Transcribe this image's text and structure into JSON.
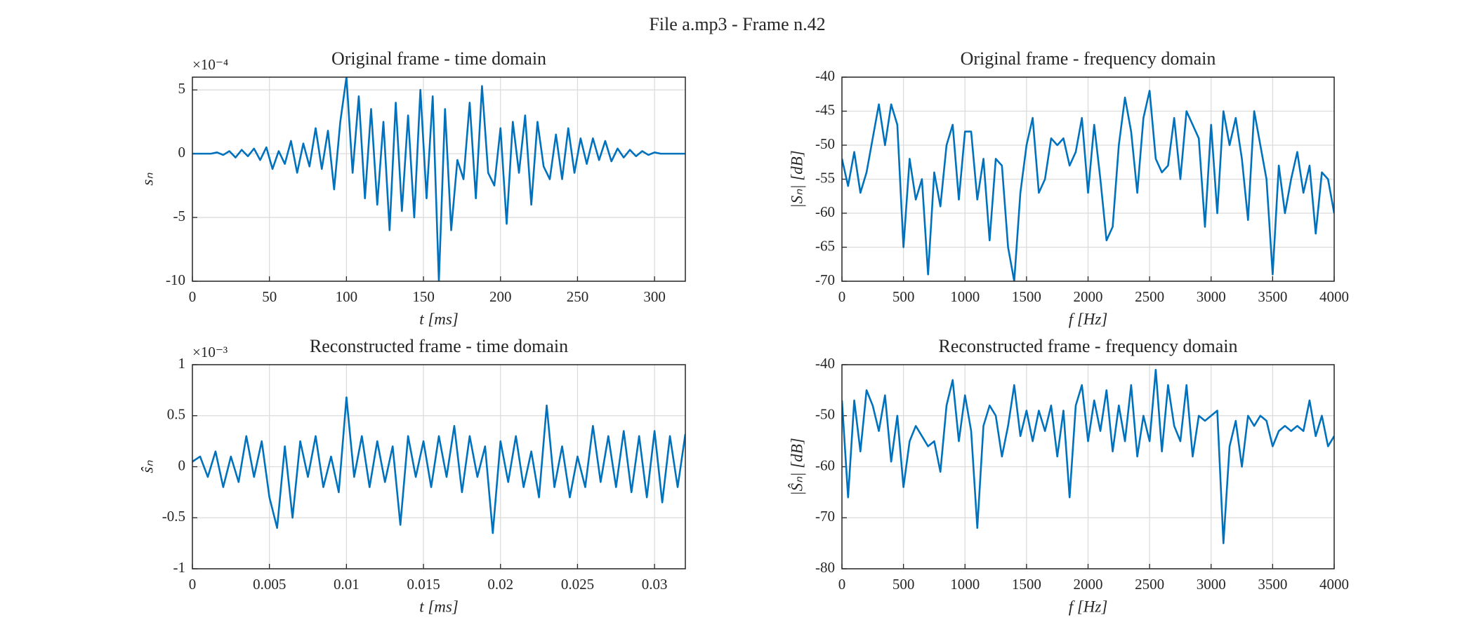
{
  "title": "File a.mp3 - Frame n.42",
  "chart_data": [
    {
      "type": "line",
      "title": "Original frame - time domain",
      "x_label": "t [ms]",
      "y_label": "sₙ",
      "y_exponent": "×10⁻⁴",
      "x": [
        0,
        4,
        8,
        12,
        16,
        20,
        24,
        28,
        32,
        36,
        40,
        44,
        48,
        52,
        56,
        60,
        64,
        68,
        72,
        76,
        80,
        84,
        88,
        92,
        96,
        100,
        104,
        108,
        112,
        116,
        120,
        124,
        128,
        132,
        136,
        140,
        144,
        148,
        152,
        156,
        160,
        164,
        168,
        172,
        176,
        180,
        184,
        188,
        192,
        196,
        200,
        204,
        208,
        212,
        216,
        220,
        224,
        228,
        232,
        236,
        240,
        244,
        248,
        252,
        256,
        260,
        264,
        268,
        272,
        276,
        280,
        284,
        288,
        292,
        296,
        300,
        304,
        308,
        312,
        316,
        320
      ],
      "series": [
        {
          "color": "#0072bd",
          "values": [
            0,
            0,
            0,
            0,
            0.1,
            -0.1,
            0.2,
            -0.3,
            0.3,
            -0.2,
            0.4,
            -0.5,
            0.5,
            -1.2,
            0.2,
            -0.8,
            1.0,
            -1.5,
            0.8,
            -1.0,
            2.0,
            -1.2,
            1.8,
            -2.8,
            2.5,
            6.0,
            -1.5,
            4.5,
            -3.5,
            3.5,
            -4.0,
            2.5,
            -6.0,
            4.0,
            -4.5,
            3.0,
            -5.0,
            5.0,
            -3.5,
            4.5,
            -10,
            3.5,
            -6.0,
            -0.5,
            -2.0,
            4.0,
            -3.5,
            5.3,
            -1.5,
            -2.5,
            2.0,
            -5.5,
            2.5,
            -1.5,
            3.0,
            -4.0,
            2.5,
            -1.0,
            -2.0,
            1.5,
            -2.0,
            2.0,
            -1.5,
            1.2,
            -0.8,
            1.2,
            -0.5,
            1.0,
            -0.6,
            0.4,
            -0.3,
            0.3,
            -0.2,
            0.2,
            -0.1,
            0.1,
            0,
            0,
            0,
            0,
            0
          ]
        }
      ],
      "xlim": [
        0,
        320
      ],
      "xticks": [
        0,
        50,
        100,
        150,
        200,
        250,
        300
      ],
      "ylim": [
        -10,
        6
      ],
      "yticks": [
        -10,
        -5,
        0,
        5
      ],
      "grid": true
    },
    {
      "type": "line",
      "title": "Original frame - frequency domain",
      "x_label": "f [Hz]",
      "y_label": "|Sₙ| [dB]",
      "x": [
        0,
        50,
        100,
        150,
        200,
        250,
        300,
        350,
        400,
        450,
        500,
        550,
        600,
        650,
        700,
        750,
        800,
        850,
        900,
        950,
        1000,
        1050,
        1100,
        1150,
        1200,
        1250,
        1300,
        1350,
        1400,
        1450,
        1500,
        1550,
        1600,
        1650,
        1700,
        1750,
        1800,
        1850,
        1900,
        1950,
        2000,
        2050,
        2100,
        2150,
        2200,
        2250,
        2300,
        2350,
        2400,
        2450,
        2500,
        2550,
        2600,
        2650,
        2700,
        2750,
        2800,
        2850,
        2900,
        2950,
        3000,
        3050,
        3100,
        3150,
        3200,
        3250,
        3300,
        3350,
        3400,
        3450,
        3500,
        3550,
        3600,
        3650,
        3700,
        3750,
        3800,
        3850,
        3900,
        3950,
        4000
      ],
      "series": [
        {
          "color": "#0072bd",
          "values": [
            -52,
            -56,
            -51,
            -57,
            -54,
            -49,
            -44,
            -50,
            -44,
            -47,
            -65,
            -52,
            -58,
            -55,
            -69,
            -54,
            -59,
            -50,
            -47,
            -58,
            -48,
            -48,
            -58,
            -52,
            -64,
            -52,
            -53,
            -65,
            -70,
            -57,
            -50,
            -46,
            -57,
            -55,
            -49,
            -50,
            -49,
            -53,
            -51,
            -46,
            -57,
            -47,
            -55,
            -64,
            -62,
            -50,
            -43,
            -48,
            -57,
            -46,
            -42,
            -52,
            -54,
            -53,
            -46,
            -55,
            -45,
            -47,
            -49,
            -62,
            -47,
            -60,
            -45,
            -50,
            -46,
            -52,
            -61,
            -45,
            -50,
            -55,
            -69,
            -53,
            -60,
            -55,
            -51,
            -57,
            -53,
            -63,
            -54,
            -55,
            -60
          ]
        }
      ],
      "xlim": [
        0,
        4000
      ],
      "xticks": [
        0,
        500,
        1000,
        1500,
        2000,
        2500,
        3000,
        3500,
        4000
      ],
      "ylim": [
        -70,
        -40
      ],
      "yticks": [
        -70,
        -65,
        -60,
        -55,
        -50,
        -45,
        -40
      ],
      "grid": true
    },
    {
      "type": "line",
      "title": "Reconstructed frame - time domain",
      "x_label": "t [ms]",
      "y_label": "ŝₙ",
      "y_exponent": "×10⁻³",
      "x": [
        0,
        0.0005,
        0.001,
        0.0015,
        0.002,
        0.0025,
        0.003,
        0.0035,
        0.004,
        0.0045,
        0.005,
        0.0055,
        0.006,
        0.0065,
        0.007,
        0.0075,
        0.008,
        0.0085,
        0.009,
        0.0095,
        0.01,
        0.0105,
        0.011,
        0.0115,
        0.012,
        0.0125,
        0.013,
        0.0135,
        0.014,
        0.0145,
        0.015,
        0.0155,
        0.016,
        0.0165,
        0.017,
        0.0175,
        0.018,
        0.0185,
        0.019,
        0.0195,
        0.02,
        0.0205,
        0.021,
        0.0215,
        0.022,
        0.0225,
        0.023,
        0.0235,
        0.024,
        0.0245,
        0.025,
        0.0255,
        0.026,
        0.0265,
        0.027,
        0.0275,
        0.028,
        0.0285,
        0.029,
        0.0295,
        0.03,
        0.0305,
        0.031,
        0.0315,
        0.032
      ],
      "series": [
        {
          "color": "#0072bd",
          "values": [
            0.05,
            0.1,
            -0.1,
            0.15,
            -0.2,
            0.1,
            -0.15,
            0.3,
            -0.1,
            0.25,
            -0.3,
            -0.6,
            0.2,
            -0.5,
            0.25,
            -0.1,
            0.3,
            -0.2,
            0.1,
            -0.25,
            0.68,
            -0.1,
            0.3,
            -0.2,
            0.25,
            -0.15,
            0.2,
            -0.57,
            0.3,
            -0.1,
            0.25,
            -0.2,
            0.3,
            -0.1,
            0.4,
            -0.25,
            0.3,
            -0.1,
            0.2,
            -0.65,
            0.25,
            -0.15,
            0.3,
            -0.2,
            0.15,
            -0.3,
            0.6,
            -0.2,
            0.2,
            -0.3,
            0.1,
            -0.2,
            0.4,
            -0.15,
            0.3,
            -0.2,
            0.35,
            -0.25,
            0.3,
            -0.3,
            0.35,
            -0.35,
            0.3,
            -0.2,
            0.32
          ]
        }
      ],
      "xlim": [
        0,
        0.032
      ],
      "xticks": [
        0,
        0.005,
        0.01,
        0.015,
        0.02,
        0.025,
        0.03
      ],
      "ylim": [
        -1,
        1
      ],
      "yticks": [
        -1,
        -0.5,
        0,
        0.5,
        1
      ],
      "grid": true
    },
    {
      "type": "line",
      "title": "Reconstructed frame - frequency domain",
      "x_label": "f [Hz]",
      "y_label": "|Ŝₙ| [dB]",
      "x": [
        0,
        50,
        100,
        150,
        200,
        250,
        300,
        350,
        400,
        450,
        500,
        550,
        600,
        650,
        700,
        750,
        800,
        850,
        900,
        950,
        1000,
        1050,
        1100,
        1150,
        1200,
        1250,
        1300,
        1350,
        1400,
        1450,
        1500,
        1550,
        1600,
        1650,
        1700,
        1750,
        1800,
        1850,
        1900,
        1950,
        2000,
        2050,
        2100,
        2150,
        2200,
        2250,
        2300,
        2350,
        2400,
        2450,
        2500,
        2550,
        2600,
        2650,
        2700,
        2750,
        2800,
        2850,
        2900,
        2950,
        3000,
        3050,
        3100,
        3150,
        3200,
        3250,
        3300,
        3350,
        3400,
        3450,
        3500,
        3550,
        3600,
        3650,
        3700,
        3750,
        3800,
        3850,
        3900,
        3950,
        4000
      ],
      "series": [
        {
          "color": "#0072bd",
          "values": [
            -47,
            -66,
            -47,
            -57,
            -45,
            -48,
            -53,
            -46,
            -59,
            -50,
            -64,
            -55,
            -52,
            -54,
            -56,
            -55,
            -61,
            -48,
            -43,
            -55,
            -46,
            -53,
            -72,
            -52,
            -48,
            -50,
            -58,
            -52,
            -44,
            -54,
            -49,
            -55,
            -49,
            -53,
            -48,
            -58,
            -49,
            -66,
            -48,
            -44,
            -55,
            -47,
            -53,
            -45,
            -57,
            -48,
            -55,
            -44,
            -58,
            -50,
            -55,
            -41,
            -57,
            -44,
            -52,
            -55,
            -44,
            -58,
            -50,
            -51,
            -50,
            -49,
            -75,
            -56,
            -51,
            -60,
            -50,
            -52,
            -50,
            -51,
            -56,
            -53,
            -52,
            -53,
            -52,
            -53,
            -47,
            -54,
            -50,
            -56,
            -54
          ]
        }
      ],
      "xlim": [
        0,
        4000
      ],
      "xticks": [
        0,
        500,
        1000,
        1500,
        2000,
        2500,
        3000,
        3500,
        4000
      ],
      "ylim": [
        -80,
        -40
      ],
      "yticks": [
        -80,
        -70,
        -60,
        -50,
        -40
      ],
      "grid": true
    }
  ]
}
